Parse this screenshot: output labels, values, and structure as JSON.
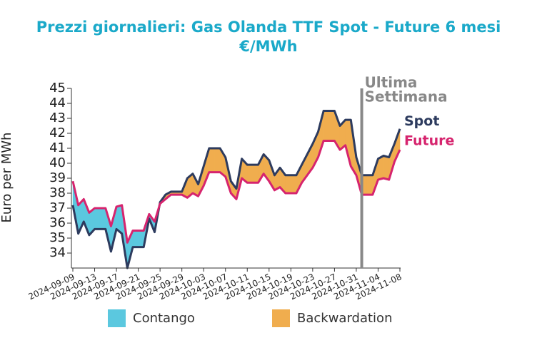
{
  "chart_data": {
    "type": "line",
    "title": "Prezzi giornalieri: Gas Olanda TTF Spot - Future 6 mesi",
    "subtitle": "€/MWh",
    "y_label": "Euro per MWh",
    "x": [
      "2024-09-09",
      "2024-09-10",
      "2024-09-11",
      "2024-09-12",
      "2024-09-13",
      "2024-09-14",
      "2024-09-15",
      "2024-09-16",
      "2024-09-17",
      "2024-09-18",
      "2024-09-19",
      "2024-09-20",
      "2024-09-21",
      "2024-09-22",
      "2024-09-23",
      "2024-09-24",
      "2024-09-25",
      "2024-09-26",
      "2024-09-27",
      "2024-09-28",
      "2024-09-29",
      "2024-09-30",
      "2024-10-01",
      "2024-10-02",
      "2024-10-03",
      "2024-10-04",
      "2024-10-05",
      "2024-10-06",
      "2024-10-07",
      "2024-10-08",
      "2024-10-09",
      "2024-10-10",
      "2024-10-11",
      "2024-10-12",
      "2024-10-13",
      "2024-10-14",
      "2024-10-15",
      "2024-10-16",
      "2024-10-17",
      "2024-10-18",
      "2024-10-19",
      "2024-10-20",
      "2024-10-21",
      "2024-10-22",
      "2024-10-23",
      "2024-10-24",
      "2024-10-25",
      "2024-10-26",
      "2024-10-27",
      "2024-10-28",
      "2024-10-29",
      "2024-10-30",
      "2024-10-31",
      "2024-11-01",
      "2024-11-02",
      "2024-11-03",
      "2024-11-04",
      "2024-11-05",
      "2024-11-06",
      "2024-11-07",
      "2024-11-08"
    ],
    "series": [
      {
        "name": "Spot",
        "color": "#2d3b5e",
        "values": [
          37.2,
          35.3,
          36.1,
          35.2,
          35.6,
          35.6,
          35.6,
          34.1,
          35.6,
          35.3,
          33.0,
          34.4,
          34.4,
          34.4,
          36.3,
          35.4,
          37.4,
          37.9,
          38.1,
          38.1,
          38.1,
          39.0,
          39.3,
          38.6,
          39.8,
          41.0,
          41.0,
          41.0,
          40.4,
          38.8,
          38.3,
          40.3,
          39.9,
          39.9,
          39.9,
          40.6,
          40.2,
          39.2,
          39.7,
          39.2,
          39.2,
          39.2,
          39.9,
          40.6,
          41.3,
          42.1,
          43.5,
          43.5,
          43.5,
          42.5,
          42.9,
          42.9,
          40.4,
          39.2,
          39.2,
          39.2,
          40.3,
          40.5,
          40.4,
          41.3,
          42.3
        ]
      },
      {
        "name": "Future",
        "color": "#d6246e",
        "values": [
          38.8,
          37.2,
          37.6,
          36.7,
          37.0,
          37.0,
          37.0,
          35.8,
          37.1,
          37.2,
          34.7,
          35.5,
          35.5,
          35.5,
          36.6,
          36.1,
          37.3,
          37.6,
          37.9,
          37.9,
          37.9,
          37.7,
          38.0,
          37.8,
          38.5,
          39.4,
          39.4,
          39.4,
          39.1,
          38.0,
          37.6,
          39.0,
          38.7,
          38.7,
          38.7,
          39.3,
          38.8,
          38.2,
          38.4,
          38.0,
          38.0,
          38.0,
          38.7,
          39.2,
          39.7,
          40.4,
          41.5,
          41.5,
          41.5,
          40.9,
          41.2,
          39.8,
          39.2,
          37.9,
          37.9,
          37.9,
          38.9,
          39.0,
          38.9,
          40.1,
          40.9
        ]
      }
    ],
    "fills": [
      {
        "name": "Contango",
        "color": "#5bc8df"
      },
      {
        "name": "Backwardation",
        "color": "#f0ad4e"
      }
    ],
    "annotation": {
      "x": "2024-11-01",
      "lines": [
        "Ultima",
        "Settimana"
      ],
      "color": "#888888"
    },
    "xticks": [
      "2024-09-09",
      "2024-09-13",
      "2024-09-17",
      "2024-09-21",
      "2024-09-25",
      "2024-09-29",
      "2024-10-03",
      "2024-10-07",
      "2024-10-11",
      "2024-10-15",
      "2024-10-19",
      "2024-10-23",
      "2024-10-27",
      "2024-10-31",
      "2024-11-04",
      "2024-11-08"
    ],
    "ylim": [
      33,
      45
    ],
    "yticks": [
      34,
      35,
      36,
      37,
      38,
      39,
      40,
      41,
      42,
      43,
      44,
      45
    ]
  }
}
